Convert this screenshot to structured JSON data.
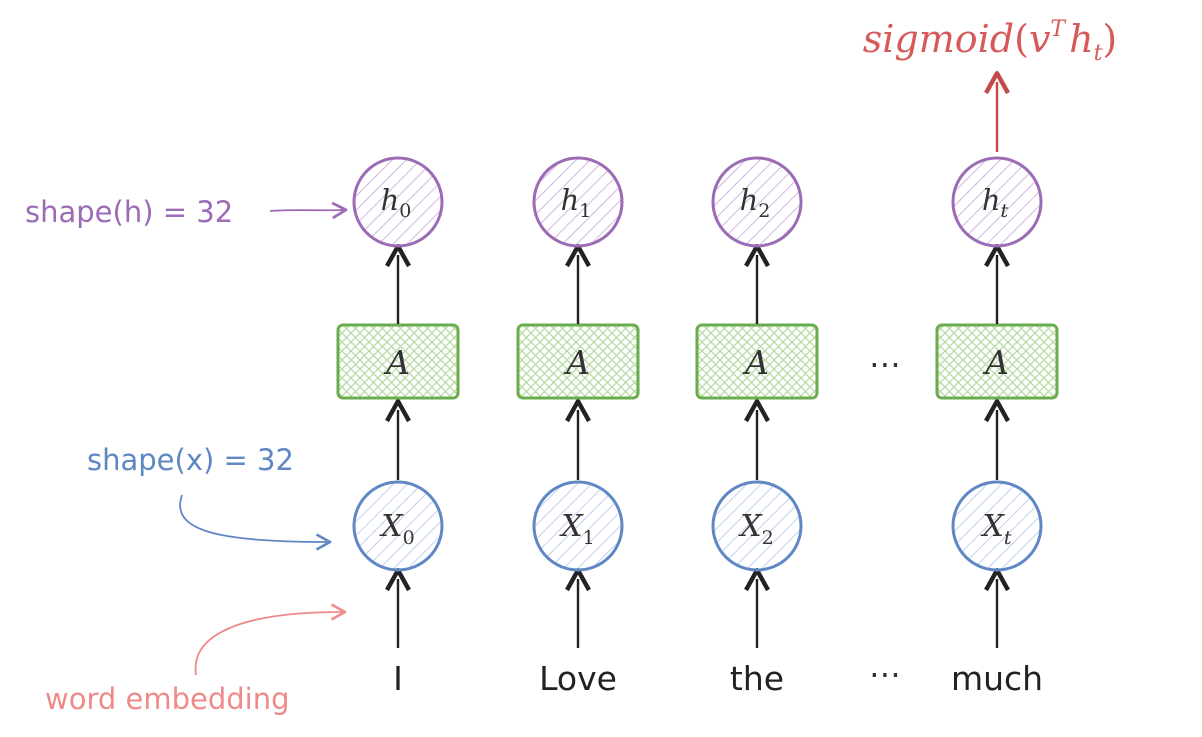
{
  "output": {
    "func": "sigmoid",
    "open": "(",
    "v": "v",
    "sup": "T",
    "h": "h",
    "sub": "t",
    "close": ")"
  },
  "annotations": {
    "shape_h": "shape(h) = 32",
    "shape_x": "shape(x) = 32",
    "word_embedding": "word embedding"
  },
  "cell_label": "A",
  "ellipsis": "⋯",
  "columns": [
    {
      "word": "I",
      "h": "h",
      "h_sub": "0",
      "x": "X",
      "x_sub": "0"
    },
    {
      "word": "Love",
      "h": "h",
      "h_sub": "1",
      "x": "X",
      "x_sub": "1"
    },
    {
      "word": "the",
      "h": "h",
      "h_sub": "2",
      "x": "X",
      "x_sub": "2"
    },
    {
      "word": "much",
      "h": "h",
      "h_sub": "t",
      "x": "X",
      "x_sub": "t"
    }
  ],
  "colors": {
    "purple": "#9c6bb5",
    "purple_fill": "#b993cf",
    "green": "#6aad4f",
    "green_fill": "#a5d28e",
    "blue": "#5f87c4",
    "blue_fill": "#9bb6e0",
    "red": "#d65a5a",
    "salmon": "#ef8a8a",
    "ink": "#222222"
  }
}
